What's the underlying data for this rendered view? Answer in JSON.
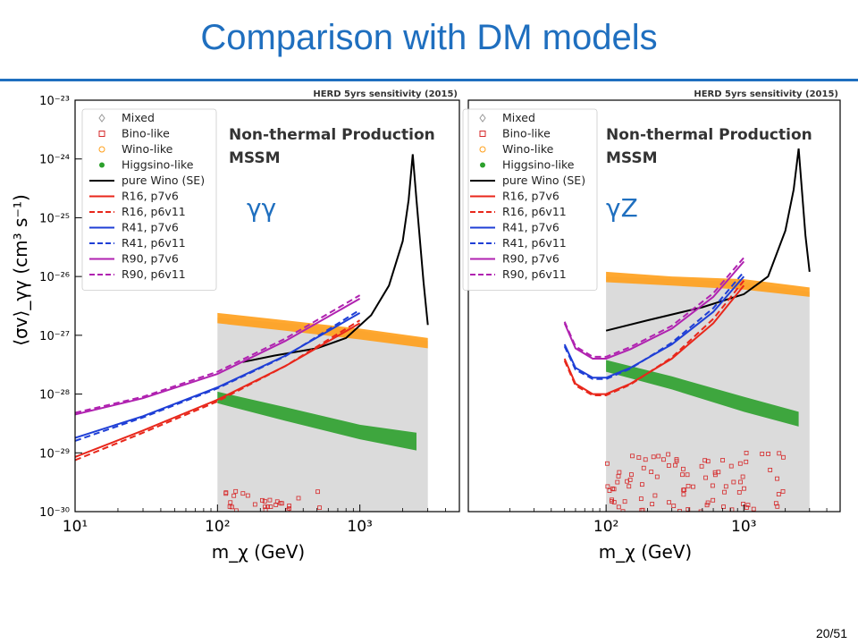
{
  "slide": {
    "title": "Comparison with DM models",
    "page": "20/51",
    "accent_color": "#1f6fbf"
  },
  "chart_data": [
    {
      "type": "scatter",
      "panel_label": "γγ",
      "header": "HERD 5yrs sensitivity (2015)",
      "annotation": [
        "Non-thermal Production",
        "MSSM"
      ],
      "xlabel": "m_χ (GeV)",
      "ylabel": "⟨σv⟩_γγ (cm³ s⁻¹)",
      "xscale": "log",
      "yscale": "log",
      "xlim": [
        10,
        5000
      ],
      "ylim": [
        1e-30,
        1e-23
      ],
      "xticks": [
        {
          "v": 10,
          "label": "10¹"
        },
        {
          "v": 100,
          "label": "10²"
        },
        {
          "v": 1000,
          "label": "10³"
        }
      ],
      "yticks": [
        {
          "v": 1e-30,
          "label": "10⁻³⁰"
        },
        {
          "v": 1e-29,
          "label": "10⁻²⁹"
        },
        {
          "v": 1e-28,
          "label": "10⁻²⁸"
        },
        {
          "v": 1e-27,
          "label": "10⁻²⁷"
        },
        {
          "v": 1e-26,
          "label": "10⁻²⁶"
        },
        {
          "v": 1e-25,
          "label": "10⁻²⁵"
        },
        {
          "v": 1e-24,
          "label": "10⁻²⁴"
        },
        {
          "v": 1e-23,
          "label": "10⁻²³"
        }
      ],
      "legend": [
        {
          "label": "Mixed",
          "kind": "marker",
          "shape": "diamond",
          "color": "#999999"
        },
        {
          "label": "Bino-like",
          "kind": "marker",
          "shape": "square",
          "color": "#d62728"
        },
        {
          "label": "Wino-like",
          "kind": "marker",
          "shape": "circle",
          "color": "#ff9f1a"
        },
        {
          "label": "Higgsino-like",
          "kind": "marker",
          "shape": "dot",
          "color": "#2ca02c"
        },
        {
          "label": "pure Wino (SE)",
          "kind": "line",
          "dash": false,
          "color": "#000000"
        },
        {
          "label": "R16, p7v6",
          "kind": "line",
          "dash": false,
          "color": "#e8271b"
        },
        {
          "label": "R16, p6v11",
          "kind": "line",
          "dash": true,
          "color": "#e8271b"
        },
        {
          "label": "R41, p7v6",
          "kind": "line",
          "dash": false,
          "color": "#1f3fd6"
        },
        {
          "label": "R41, p6v11",
          "kind": "line",
          "dash": true,
          "color": "#1f3fd6"
        },
        {
          "label": "R90, p7v6",
          "kind": "line",
          "dash": false,
          "color": "#b022b0"
        },
        {
          "label": "R90, p6v11",
          "kind": "line",
          "dash": true,
          "color": "#b022b0"
        }
      ],
      "series": [
        {
          "name": "pure Wino (SE)",
          "color": "#000000",
          "dash": false,
          "x": [
            150,
            250,
            500,
            800,
            1200,
            1600,
            2000,
            2200,
            2350,
            2500,
            2800,
            3000
          ],
          "y": [
            3.5e-28,
            4.5e-28,
            6e-28,
            9e-28,
            2.2e-27,
            7e-27,
            4e-26,
            2e-25,
            1.2e-24,
            2e-25,
            8e-27,
            1.5e-27
          ]
        },
        {
          "name": "R16, p7v6",
          "color": "#e8271b",
          "dash": false,
          "x": [
            10,
            30,
            100,
            300,
            1000
          ],
          "y": [
            8.5e-30,
            2.4e-29,
            8e-29,
            3e-28,
            1.6e-27
          ]
        },
        {
          "name": "R16, p6v11",
          "color": "#e8271b",
          "dash": true,
          "x": [
            10,
            30,
            100,
            300,
            1000
          ],
          "y": [
            7.5e-30,
            2.2e-29,
            7.5e-29,
            3e-28,
            1.8e-27
          ]
        },
        {
          "name": "R41, p7v6",
          "color": "#1f3fd6",
          "dash": false,
          "x": [
            10,
            30,
            100,
            300,
            1000
          ],
          "y": [
            1.8e-29,
            4.2e-29,
            1.3e-28,
            4.5e-28,
            2.4e-27
          ]
        },
        {
          "name": "R41, p6v11",
          "color": "#1f3fd6",
          "dash": true,
          "x": [
            10,
            30,
            100,
            300,
            1000
          ],
          "y": [
            1.6e-29,
            4e-29,
            1.25e-28,
            4.4e-28,
            2.7e-27
          ]
        },
        {
          "name": "R90, p7v6",
          "color": "#b022b0",
          "dash": false,
          "x": [
            10,
            30,
            100,
            300,
            1000
          ],
          "y": [
            4.5e-29,
            8.5e-29,
            2.2e-28,
            8e-28,
            4.2e-27
          ]
        },
        {
          "name": "R90, p6v11",
          "color": "#b022b0",
          "dash": true,
          "x": [
            10,
            30,
            100,
            300,
            1000
          ],
          "y": [
            4.8e-29,
            9e-29,
            2.4e-28,
            8.8e-28,
            4.8e-27
          ]
        }
      ],
      "bands": [
        {
          "name": "Wino-like",
          "color": "#ff9f1a",
          "x": [
            100,
            300,
            1000,
            3000
          ],
          "y_top": [
            2.4e-27,
            1.8e-27,
            1.3e-27,
            9e-28
          ],
          "y_bottom": [
            1.6e-27,
            1.2e-27,
            8.5e-28,
            6e-28
          ]
        },
        {
          "name": "Higgsino-like",
          "color": "#2ca02c",
          "x": [
            100,
            300,
            1000,
            2500
          ],
          "y_top": [
            1.1e-28,
            6e-29,
            3e-29,
            2.2e-29
          ],
          "y_bottom": [
            7e-29,
            3.5e-29,
            1.7e-29,
            1.1e-29
          ]
        },
        {
          "name": "Mixed",
          "color": "#bdbdbd",
          "x": [
            100,
            300,
            1000,
            3000
          ],
          "y_top": [
            2e-27,
            1.6e-27,
            1.2e-27,
            8e-28
          ],
          "y_bottom": [
            1e-30,
            1e-30,
            1e-30,
            1e-30
          ]
        }
      ]
    },
    {
      "type": "scatter",
      "panel_label": "γZ",
      "header": "HERD 5yrs sensitivity (2015)",
      "annotation": [
        "Non-thermal Production",
        "MSSM"
      ],
      "xlabel": "m_χ (GeV)",
      "ylabel": "",
      "xscale": "log",
      "yscale": "log",
      "xlim": [
        10,
        5000
      ],
      "ylim": [
        1e-30,
        1e-23
      ],
      "xticks": [
        {
          "v": 100,
          "label": "10²"
        },
        {
          "v": 1000,
          "label": "10³"
        }
      ],
      "yticks": [],
      "legend": [
        {
          "label": "Mixed",
          "kind": "marker",
          "shape": "diamond",
          "color": "#999999"
        },
        {
          "label": "Bino-like",
          "kind": "marker",
          "shape": "square",
          "color": "#d62728"
        },
        {
          "label": "Wino-like",
          "kind": "marker",
          "shape": "circle",
          "color": "#ff9f1a"
        },
        {
          "label": "Higgsino-like",
          "kind": "marker",
          "shape": "dot",
          "color": "#2ca02c"
        },
        {
          "label": "pure Wino (SE)",
          "kind": "line",
          "dash": false,
          "color": "#000000"
        },
        {
          "label": "R16, p7v6",
          "kind": "line",
          "dash": false,
          "color": "#e8271b"
        },
        {
          "label": "R16, p6v11",
          "kind": "line",
          "dash": true,
          "color": "#e8271b"
        },
        {
          "label": "R41, p7v6",
          "kind": "line",
          "dash": false,
          "color": "#1f3fd6"
        },
        {
          "label": "R41, p6v11",
          "kind": "line",
          "dash": true,
          "color": "#1f3fd6"
        },
        {
          "label": "R90, p7v6",
          "kind": "line",
          "dash": false,
          "color": "#b022b0"
        },
        {
          "label": "R90, p6v11",
          "kind": "line",
          "dash": true,
          "color": "#b022b0"
        }
      ],
      "series": [
        {
          "name": "pure Wino (SE)",
          "color": "#000000",
          "dash": false,
          "x": [
            100,
            200,
            500,
            1000,
            1500,
            2000,
            2300,
            2500,
            2800,
            3000
          ],
          "y": [
            1.2e-27,
            1.8e-27,
            3e-27,
            5e-27,
            1e-26,
            6e-26,
            3e-25,
            1.5e-24,
            5e-26,
            1.2e-26
          ]
        },
        {
          "name": "R16, p7v6",
          "color": "#e8271b",
          "dash": false,
          "x": [
            50,
            60,
            80,
            100,
            150,
            300,
            600,
            1000
          ],
          "y": [
            4e-28,
            1.5e-28,
            1e-28,
            1e-28,
            1.5e-28,
            4e-28,
            1.6e-27,
            7e-27
          ]
        },
        {
          "name": "R16, p6v11",
          "color": "#e8271b",
          "dash": true,
          "x": [
            50,
            60,
            80,
            100,
            150,
            300,
            600,
            1000
          ],
          "y": [
            3.7e-28,
            1.4e-28,
            9.5e-29,
            9.5e-29,
            1.45e-28,
            4.2e-28,
            1.9e-27,
            8.5e-27
          ]
        },
        {
          "name": "R41, p7v6",
          "color": "#1f3fd6",
          "dash": false,
          "x": [
            50,
            60,
            80,
            100,
            150,
            300,
            600,
            1000
          ],
          "y": [
            7e-28,
            2.8e-28,
            1.9e-28,
            1.9e-28,
            2.8e-28,
            7e-28,
            2.5e-27,
            1e-26
          ]
        },
        {
          "name": "R41, p6v11",
          "color": "#1f3fd6",
          "dash": true,
          "x": [
            50,
            60,
            80,
            100,
            150,
            300,
            600,
            1000
          ],
          "y": [
            6.5e-28,
            2.6e-28,
            1.8e-28,
            1.8e-28,
            2.7e-28,
            7.5e-28,
            2.9e-27,
            1.2e-26
          ]
        },
        {
          "name": "R90, p7v6",
          "color": "#b022b0",
          "dash": false,
          "x": [
            50,
            60,
            80,
            100,
            150,
            300,
            600,
            1000
          ],
          "y": [
            1.6e-27,
            6e-28,
            4e-28,
            4e-28,
            5.8e-28,
            1.3e-27,
            4.5e-27,
            1.8e-26
          ]
        },
        {
          "name": "R90, p6v11",
          "color": "#b022b0",
          "dash": true,
          "x": [
            50,
            60,
            80,
            100,
            150,
            300,
            600,
            1000
          ],
          "y": [
            1.7e-27,
            6.5e-28,
            4.3e-28,
            4.3e-28,
            6.3e-28,
            1.45e-27,
            5.2e-27,
            2.1e-26
          ]
        }
      ],
      "bands": [
        {
          "name": "Wino-like",
          "color": "#ff9f1a",
          "x": [
            100,
            300,
            1000,
            3000
          ],
          "y_top": [
            1.2e-26,
            1e-26,
            9e-27,
            6.5e-27
          ],
          "y_bottom": [
            8e-27,
            7e-27,
            6e-27,
            4.5e-27
          ]
        },
        {
          "name": "Higgsino-like",
          "color": "#2ca02c",
          "x": [
            100,
            300,
            1000,
            2500
          ],
          "y_top": [
            3.8e-28,
            2e-28,
            9e-29,
            5e-29
          ],
          "y_bottom": [
            2.4e-28,
            1.2e-28,
            5e-29,
            2.8e-29
          ]
        },
        {
          "name": "Mixed",
          "color": "#bdbdbd",
          "x": [
            100,
            300,
            1000,
            3000
          ],
          "y_top": [
            1e-26,
            9e-27,
            8e-27,
            5.5e-27
          ],
          "y_bottom": [
            1e-30,
            1e-30,
            1e-30,
            1e-30
          ]
        }
      ]
    }
  ]
}
